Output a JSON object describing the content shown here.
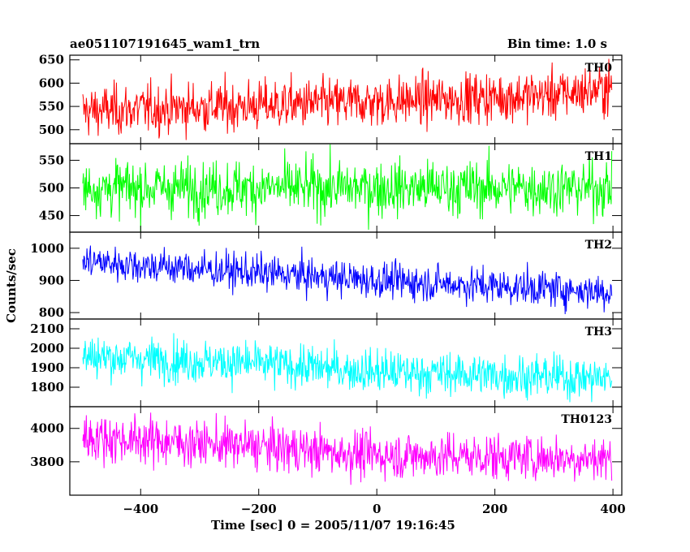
{
  "chart_data": {
    "type": "line",
    "title_left": "ae051107191645_wam1_trn",
    "title_right": "Bin time: 1.0 s",
    "xlabel": "Time [sec] 0 = 2005/11/07 19:16:45",
    "ylabel": "Counts/sec",
    "xlim": [
      -520,
      415
    ],
    "xticks": [
      -400,
      -200,
      0,
      200,
      400
    ],
    "grid": false,
    "bin_time_s": 1.0,
    "panels": [
      {
        "name": "TH0",
        "color": "#ff0000",
        "ylim": [
          470,
          660
        ],
        "yticks": [
          500,
          550,
          600,
          650
        ],
        "trend": [
          [
            -500,
            540
          ],
          [
            0,
            560
          ],
          [
            300,
            575
          ],
          [
            400,
            590
          ]
        ],
        "noise": 27
      },
      {
        "name": "TH1",
        "color": "#00ff00",
        "ylim": [
          420,
          580
        ],
        "yticks": [
          450,
          500,
          550
        ],
        "trend": [
          [
            -500,
            500
          ],
          [
            400,
            500
          ]
        ],
        "noise": 25
      },
      {
        "name": "TH2",
        "color": "#0000ff",
        "ylim": [
          780,
          1050
        ],
        "yticks": [
          800,
          900,
          1000
        ],
        "trend": [
          [
            -500,
            960
          ],
          [
            -300,
            935
          ],
          [
            0,
            900
          ],
          [
            400,
            865
          ]
        ],
        "noise": 28
      },
      {
        "name": "TH3",
        "color": "#00ffff",
        "ylim": [
          1700,
          2150
        ],
        "yticks": [
          1800,
          1900,
          2000,
          2100
        ],
        "trend": [
          [
            -500,
            1960
          ],
          [
            -200,
            1920
          ],
          [
            0,
            1880
          ],
          [
            400,
            1845
          ]
        ],
        "noise": 55
      },
      {
        "name": "TH0123",
        "color": "#ff00ff",
        "ylim": [
          3600,
          4130
        ],
        "yticks": [
          3800,
          4000
        ],
        "trend": [
          [
            -500,
            3950
          ],
          [
            -200,
            3890
          ],
          [
            0,
            3840
          ],
          [
            400,
            3820
          ]
        ],
        "noise": 70
      }
    ]
  }
}
